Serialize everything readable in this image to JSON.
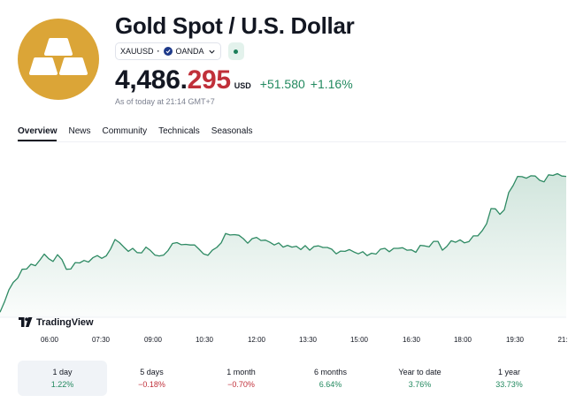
{
  "header": {
    "title": "Gold Spot / U.S. Dollar",
    "symbol": "XAUUSD",
    "broker": "OANDA",
    "logo_icon": "gold-bars-icon",
    "status_icon": "market-status-dot-icon"
  },
  "quote": {
    "price_main": "4,486.",
    "price_tail": "295",
    "currency": "USD",
    "change": "+51.580",
    "change_pct": "+1.16%",
    "as_of": "As of today at 21:14 GMT+7"
  },
  "tabs": [
    {
      "label": "Overview",
      "active": true
    },
    {
      "label": "News"
    },
    {
      "label": "Community"
    },
    {
      "label": "Technicals"
    },
    {
      "label": "Seasonals"
    }
  ],
  "chart_watermark": "TradingView",
  "colors": {
    "accent_gold": "#dba537",
    "positive": "#22895f",
    "negative": "#c0303a",
    "line": "#2e8a63"
  },
  "chart_data": {
    "type": "area",
    "x_ticks": [
      "06:00",
      "07:30",
      "09:00",
      "10:30",
      "12:00",
      "13:30",
      "15:00",
      "16:30",
      "18:00",
      "19:30",
      "21:"
    ],
    "x": [
      0,
      5,
      10,
      15,
      20,
      25,
      30,
      35,
      40,
      45,
      50,
      55,
      60,
      65,
      70,
      75,
      80,
      85,
      90,
      95,
      100,
      105,
      110,
      115,
      120,
      125,
      130,
      135,
      140,
      145,
      150,
      155,
      160,
      165,
      170,
      175,
      180,
      185,
      190,
      195,
      200,
      205,
      210,
      215,
      220,
      225,
      230,
      235,
      240,
      245,
      250,
      255,
      260,
      265,
      270,
      275,
      280,
      285,
      290,
      295,
      300,
      305,
      310,
      315,
      320,
      325,
      330,
      335,
      340,
      345,
      350,
      355,
      360,
      365,
      370,
      375,
      380,
      385,
      390,
      395,
      400,
      405,
      410,
      415,
      420,
      425,
      430,
      435,
      440,
      445,
      450,
      455,
      460,
      465,
      470,
      475,
      480,
      485,
      490,
      495,
      500,
      505,
      510,
      515,
      520,
      525,
      530,
      535,
      540,
      545,
      550,
      555,
      560,
      565,
      570,
      575,
      580,
      585,
      590,
      595,
      600,
      605,
      610,
      615,
      620,
      625,
      630,
      635,
      640
    ],
    "values": [
      4441.7,
      4445.0,
      4449.0,
      4451.5,
      4452.9,
      4455.8,
      4455.9,
      4457.5,
      4457.0,
      4458.8,
      4460.8,
      4459.3,
      4458.4,
      4460.6,
      4459.0,
      4455.8,
      4455.9,
      4458.0,
      4457.9,
      4458.7,
      4458.2,
      4459.6,
      4460.3,
      4459.4,
      4460.2,
      4462.5,
      4465.6,
      4464.6,
      4463.1,
      4461.7,
      4462.7,
      4461.3,
      4461.2,
      4463.1,
      4462.0,
      4460.5,
      4460.2,
      4460.5,
      4462.0,
      4464.3,
      4464.6,
      4463.9,
      4464.0,
      4463.8,
      4463.8,
      4462.4,
      4460.9,
      4460.4,
      4462.1,
      4463.0,
      4464.5,
      4467.6,
      4467.1,
      4467.2,
      4467.0,
      4465.9,
      4464.4,
      4465.9,
      4466.3,
      4465.3,
      4465.4,
      4464.7,
      4463.8,
      4464.5,
      4463.1,
      4463.7,
      4463.1,
      4463.4,
      4462.3,
      4463.6,
      4462.1,
      4463.3,
      4463.5,
      4463.0,
      4463.0,
      4462.4,
      4460.9,
      4461.8,
      4461.7,
      4462.3,
      4461.5,
      4460.9,
      4461.6,
      4460.3,
      4461.1,
      4460.8,
      4462.4,
      4462.7,
      4461.6,
      4462.7,
      4462.7,
      4462.9,
      4462.1,
      4462.2,
      4461.4,
      4463.7,
      4463.5,
      4463.2,
      4465.0,
      4465.0,
      4462.1,
      4463.3,
      4465.2,
      4464.7,
      4465.5,
      4464.5,
      4464.9,
      4466.8,
      4466.8,
      4468.5,
      4470.8,
      4475.8,
      4475.7,
      4473.9,
      4475.4,
      4481.1,
      4483.4,
      4486.4,
      4486.3,
      4485.8,
      4486.6,
      4486.5,
      4485.1,
      4484.6,
      4486.9,
      4486.7,
      4487.3,
      4486.5,
      4486.4
    ],
    "ylim": [
      4440,
      4495
    ],
    "grid": false,
    "legend": "none"
  },
  "ranges": [
    {
      "label": "1 day",
      "value": "1.22%",
      "sign": "pos",
      "active": true
    },
    {
      "label": "5 days",
      "value": "−0.18%",
      "sign": "neg"
    },
    {
      "label": "1 month",
      "value": "−0.70%",
      "sign": "neg"
    },
    {
      "label": "6 months",
      "value": "6.64%",
      "sign": "pos"
    },
    {
      "label": "Year to date",
      "value": "3.76%",
      "sign": "pos"
    },
    {
      "label": "1 year",
      "value": "33.73%",
      "sign": "pos"
    }
  ]
}
